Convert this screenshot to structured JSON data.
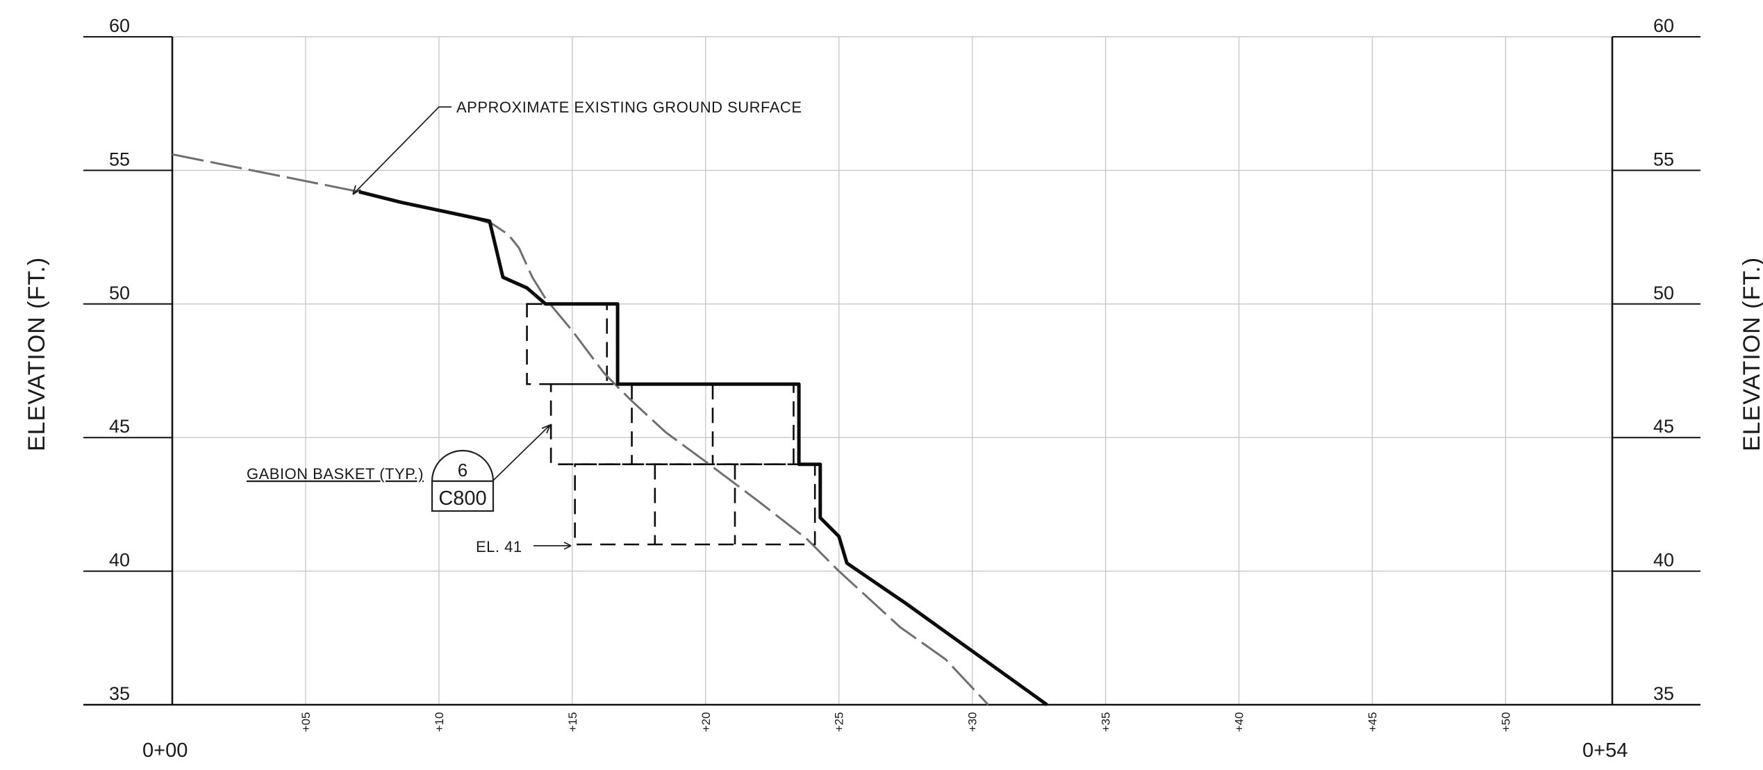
{
  "axes": {
    "y_title_left": "ELEVATION (FT.)",
    "y_title_right": "ELEVATION (FT.)",
    "y_labels": [
      "35",
      "40",
      "45",
      "50",
      "55",
      "60"
    ],
    "x_tick_labels": [
      "+05",
      "+10",
      "+15",
      "+20",
      "+25",
      "+30",
      "+35",
      "+40",
      "+45",
      "+50"
    ],
    "x_start_label": "0+00",
    "x_end_label": "0+54"
  },
  "annotations": {
    "ground_surface": "APPROXIMATE EXISTING GROUND SURFACE",
    "gabion_basket": "GABION BASKET (TYP.)",
    "detail_number": "6",
    "detail_sheet": "C800",
    "elevation_note": "EL. 41"
  },
  "profile": {
    "x_range_ft": [
      0,
      54
    ],
    "y_range_ft": [
      35,
      60
    ],
    "existing_ground": [
      [
        0,
        55.6
      ],
      [
        2.5,
        55.1
      ],
      [
        5.5,
        54.5
      ],
      [
        7,
        54.2
      ],
      [
        9,
        53.7
      ],
      [
        11,
        53.3
      ],
      [
        12,
        53.0
      ],
      [
        12.6,
        52.6
      ],
      [
        13.0,
        52.1
      ],
      [
        13.5,
        51.0
      ],
      [
        14.0,
        50.2
      ],
      [
        15.0,
        49.0
      ],
      [
        16.2,
        47.4
      ],
      [
        17.2,
        46.4
      ],
      [
        18.5,
        45.2
      ],
      [
        20,
        44.1
      ],
      [
        22,
        42.6
      ],
      [
        23.8,
        41.2
      ],
      [
        25,
        40.0
      ],
      [
        27.3,
        37.9
      ],
      [
        29,
        36.7
      ],
      [
        30.6,
        35.0
      ]
    ],
    "finished_grade": [
      [
        7,
        54.2
      ],
      [
        8.6,
        53.8
      ],
      [
        10.5,
        53.4
      ],
      [
        11.9,
        53.1
      ],
      [
        12.4,
        51.0
      ],
      [
        13.3,
        50.6
      ],
      [
        14.0,
        50.0
      ],
      [
        16.7,
        50.0
      ],
      [
        16.7,
        47.0
      ],
      [
        23.5,
        47.0
      ],
      [
        23.5,
        44.0
      ],
      [
        24.3,
        44.0
      ],
      [
        24.3,
        42.0
      ],
      [
        25.0,
        41.3
      ],
      [
        25.3,
        40.3
      ],
      [
        27.5,
        38.8
      ],
      [
        32.8,
        35.0
      ]
    ],
    "gabion_rows": [
      {
        "bottom": 47,
        "top": 50,
        "x_start": 13.3,
        "x_end": 16.3,
        "count": 1
      },
      {
        "bottom": 44,
        "top": 47,
        "x_start": 14.2,
        "x_end": 23.3,
        "count": 3
      },
      {
        "bottom": 41,
        "top": 44,
        "x_start": 15.1,
        "x_end": 24.1,
        "count": 3
      }
    ]
  }
}
